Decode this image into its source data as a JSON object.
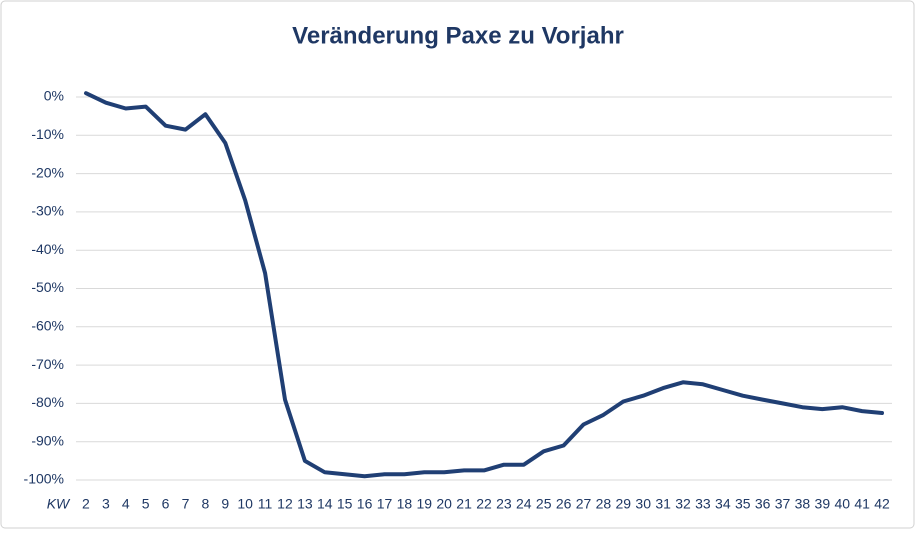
{
  "chart_data": {
    "type": "line",
    "title": "Veränderung Paxe zu Vorjahr",
    "xlabel": "KW",
    "categories": [
      "2",
      "3",
      "4",
      "5",
      "6",
      "7",
      "8",
      "9",
      "10",
      "11",
      "12",
      "13",
      "14",
      "15",
      "16",
      "17",
      "18",
      "19",
      "20",
      "21",
      "22",
      "23",
      "24",
      "25",
      "26",
      "27",
      "28",
      "29",
      "30",
      "31",
      "32",
      "33",
      "34",
      "35",
      "36",
      "37",
      "38",
      "39",
      "40",
      "41",
      "42"
    ],
    "series": [
      {
        "name": "Veränderung Paxe zu Vorjahr",
        "color": "#203f74",
        "values": [
          1,
          -1.5,
          -3,
          -2.5,
          -7.5,
          -8.5,
          -4.5,
          -12,
          -27,
          -46,
          -79,
          -95,
          -98,
          -98.5,
          -99,
          -98.5,
          -98.5,
          -98,
          -98,
          -97.5,
          -97.5,
          -96,
          -96,
          -92.5,
          -91,
          -85.5,
          -83,
          -79.5,
          -78,
          -76,
          -74.5,
          -75,
          -76.5,
          -78,
          -79,
          -80,
          -81,
          -81.5,
          -81,
          -82,
          -82.5
        ]
      }
    ],
    "ylim": [
      -100,
      0
    ],
    "yticks": [
      {
        "value": 0,
        "label": "0%"
      },
      {
        "value": -10,
        "label": "-10%"
      },
      {
        "value": -20,
        "label": "-20%"
      },
      {
        "value": -30,
        "label": "-30%"
      },
      {
        "value": -40,
        "label": "-40%"
      },
      {
        "value": -50,
        "label": "-50%"
      },
      {
        "value": -60,
        "label": "-60%"
      },
      {
        "value": -70,
        "label": "-70%"
      },
      {
        "value": -80,
        "label": "-80%"
      },
      {
        "value": -90,
        "label": "-90%"
      },
      {
        "value": -100,
        "label": "-100%"
      }
    ],
    "grid": true
  }
}
